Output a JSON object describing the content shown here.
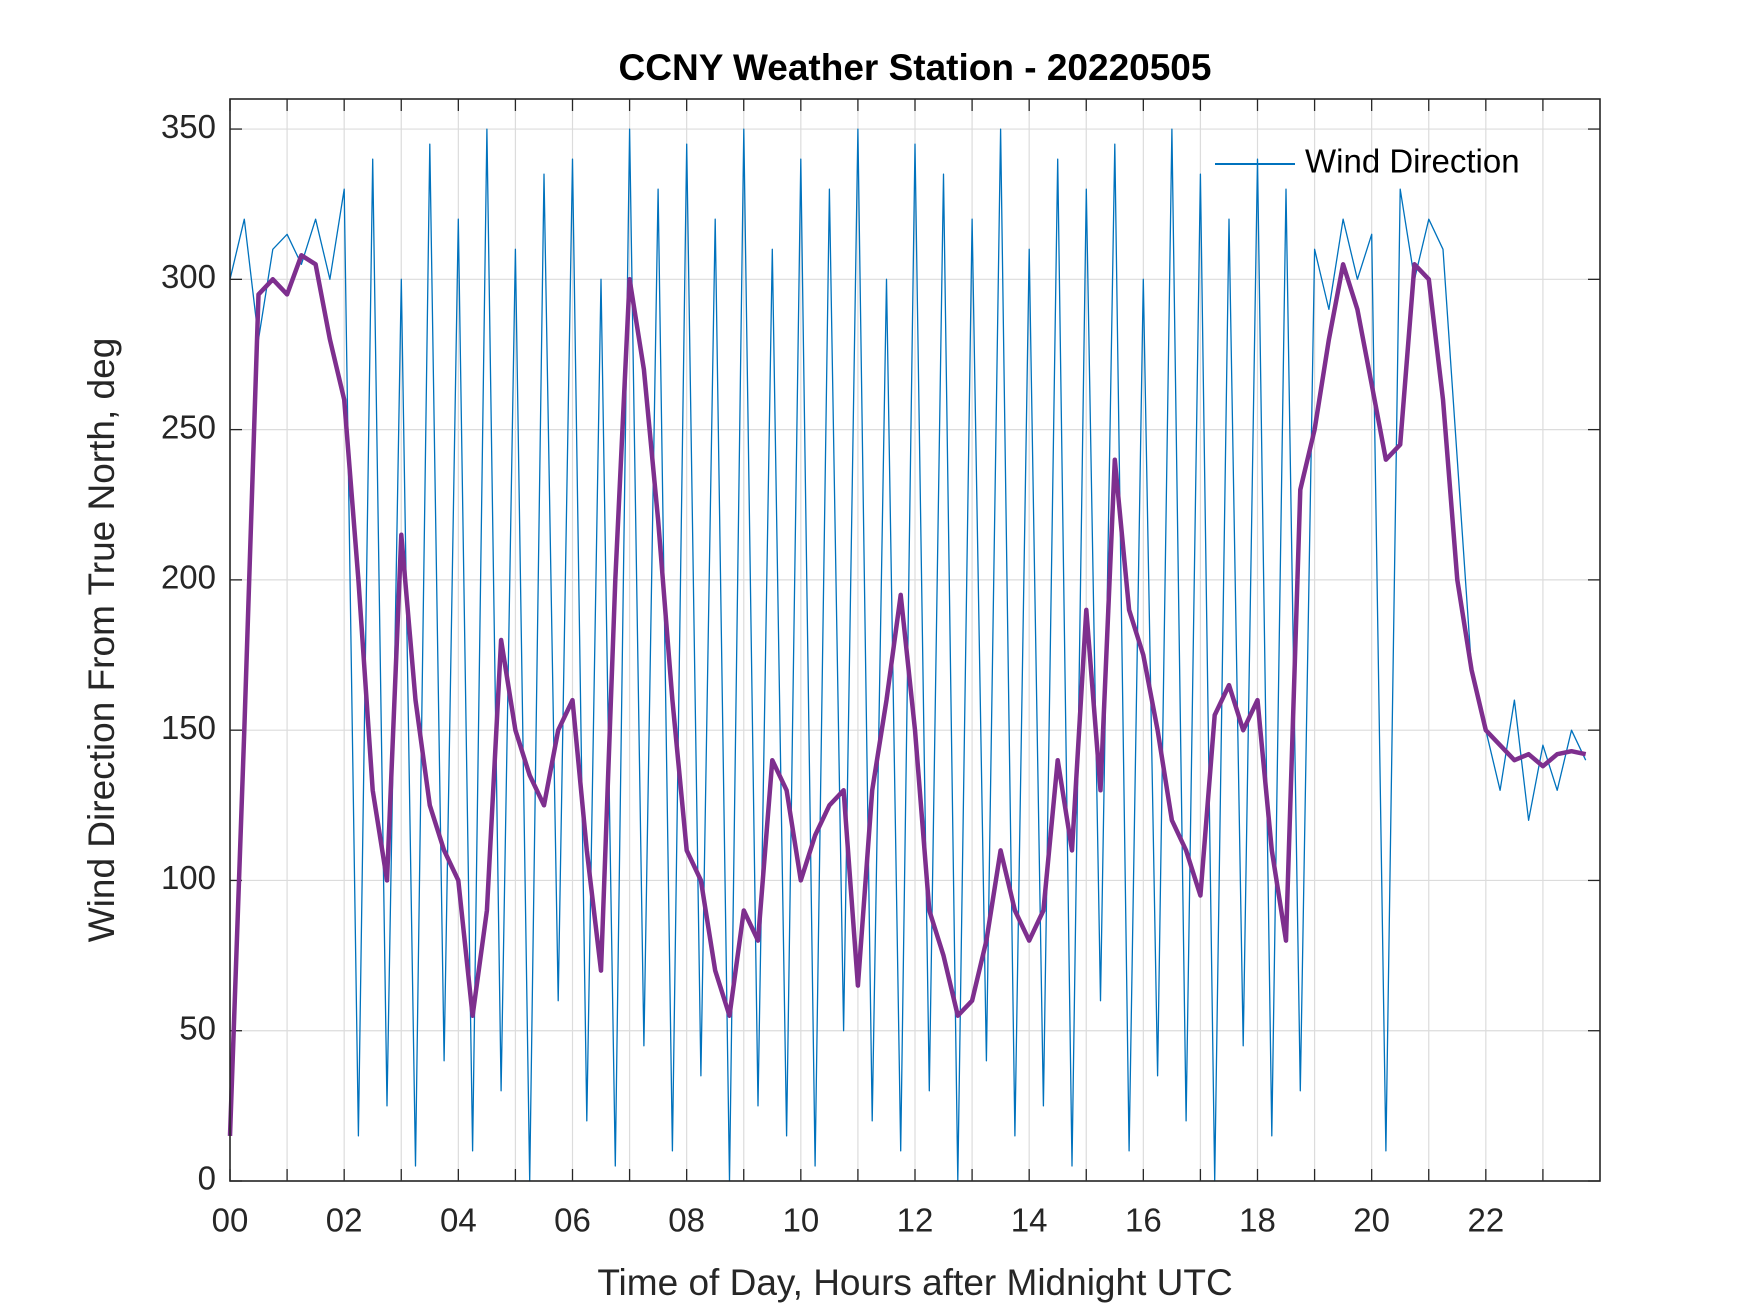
{
  "chart_data": {
    "type": "line",
    "title": "CCNY Weather Station - 20220505",
    "x_label": "Time of Day, Hours after Midnight UTC",
    "y_label": "Wind Direction From True North, deg",
    "x": [
      0,
      0.25,
      0.5,
      0.75,
      1,
      1.25,
      1.5,
      1.75,
      2,
      2.25,
      2.5,
      2.75,
      3,
      3.25,
      3.5,
      3.75,
      4,
      4.25,
      4.5,
      4.75,
      5,
      5.25,
      5.5,
      5.75,
      6,
      6.25,
      6.5,
      6.75,
      7,
      7.25,
      7.5,
      7.75,
      8,
      8.25,
      8.5,
      8.75,
      9,
      9.25,
      9.5,
      9.75,
      10,
      10.25,
      10.5,
      10.75,
      11,
      11.25,
      11.5,
      11.75,
      12,
      12.25,
      12.5,
      12.75,
      13,
      13.25,
      13.5,
      13.75,
      14,
      14.25,
      14.5,
      14.75,
      15,
      15.25,
      15.5,
      15.75,
      16,
      16.25,
      16.5,
      16.75,
      17,
      17.25,
      17.5,
      17.75,
      18,
      18.25,
      18.5,
      18.75,
      19,
      19.25,
      19.5,
      19.75,
      20,
      20.25,
      20.5,
      20.75,
      21,
      21.25,
      21.5,
      21.75,
      22,
      22.25,
      22.5,
      22.75,
      23,
      23.25,
      23.5,
      23.75
    ],
    "series": [
      {
        "name": "Wind Direction",
        "color": "#0072bd",
        "width": 1.3,
        "values": [
          300,
          320,
          280,
          310,
          315,
          305,
          320,
          300,
          330,
          15,
          340,
          25,
          300,
          5,
          345,
          40,
          320,
          10,
          350,
          30,
          310,
          0,
          335,
          60,
          340,
          20,
          300,
          5,
          350,
          45,
          330,
          10,
          345,
          35,
          320,
          0,
          350,
          25,
          310,
          15,
          340,
          5,
          330,
          50,
          350,
          20,
          300,
          10,
          345,
          30,
          335,
          0,
          320,
          40,
          350,
          15,
          310,
          25,
          340,
          5,
          330,
          60,
          345,
          10,
          300,
          35,
          350,
          20,
          335,
          0,
          320,
          45,
          340,
          15,
          330,
          30,
          310,
          290,
          320,
          300,
          315,
          10,
          330,
          300,
          320,
          310,
          240,
          170,
          150,
          130,
          160,
          120,
          145,
          130,
          150,
          140
        ]
      },
      {
        "color": "#7e2f8e",
        "width": 4.5,
        "values": [
          15,
          150,
          295,
          300,
          295,
          308,
          305,
          280,
          260,
          200,
          130,
          100,
          215,
          160,
          125,
          110,
          100,
          55,
          90,
          180,
          150,
          135,
          125,
          150,
          160,
          110,
          70,
          200,
          300,
          270,
          220,
          160,
          110,
          100,
          70,
          55,
          90,
          80,
          140,
          130,
          100,
          115,
          125,
          130,
          65,
          130,
          160,
          195,
          150,
          90,
          75,
          55,
          60,
          80,
          110,
          90,
          80,
          90,
          140,
          110,
          190,
          130,
          240,
          190,
          175,
          150,
          120,
          110,
          95,
          155,
          165,
          150,
          160,
          110,
          80,
          230,
          250,
          280,
          305,
          290,
          265,
          240,
          245,
          305,
          300,
          260,
          200,
          170,
          150,
          145,
          140,
          142,
          138,
          142,
          143,
          142
        ]
      }
    ],
    "xlim": [
      0,
      24
    ],
    "ylim": [
      0,
      360
    ],
    "xticks": [
      {
        "value": 0,
        "label": "00"
      },
      {
        "value": 2,
        "label": "02"
      },
      {
        "value": 4,
        "label": "04"
      },
      {
        "value": 6,
        "label": "06"
      },
      {
        "value": 8,
        "label": "08"
      },
      {
        "value": 10,
        "label": "10"
      },
      {
        "value": 12,
        "label": "12"
      },
      {
        "value": 14,
        "label": "14"
      },
      {
        "value": 16,
        "label": "16"
      },
      {
        "value": 18,
        "label": "18"
      },
      {
        "value": 20,
        "label": "20"
      },
      {
        "value": 22,
        "label": "22"
      }
    ],
    "xminorticks": [
      1,
      3,
      5,
      7,
      9,
      11,
      13,
      15,
      17,
      19,
      21,
      23
    ],
    "yticks": [
      0,
      50,
      100,
      150,
      200,
      250,
      300,
      350
    ],
    "grid": true,
    "legend": "northeast"
  }
}
